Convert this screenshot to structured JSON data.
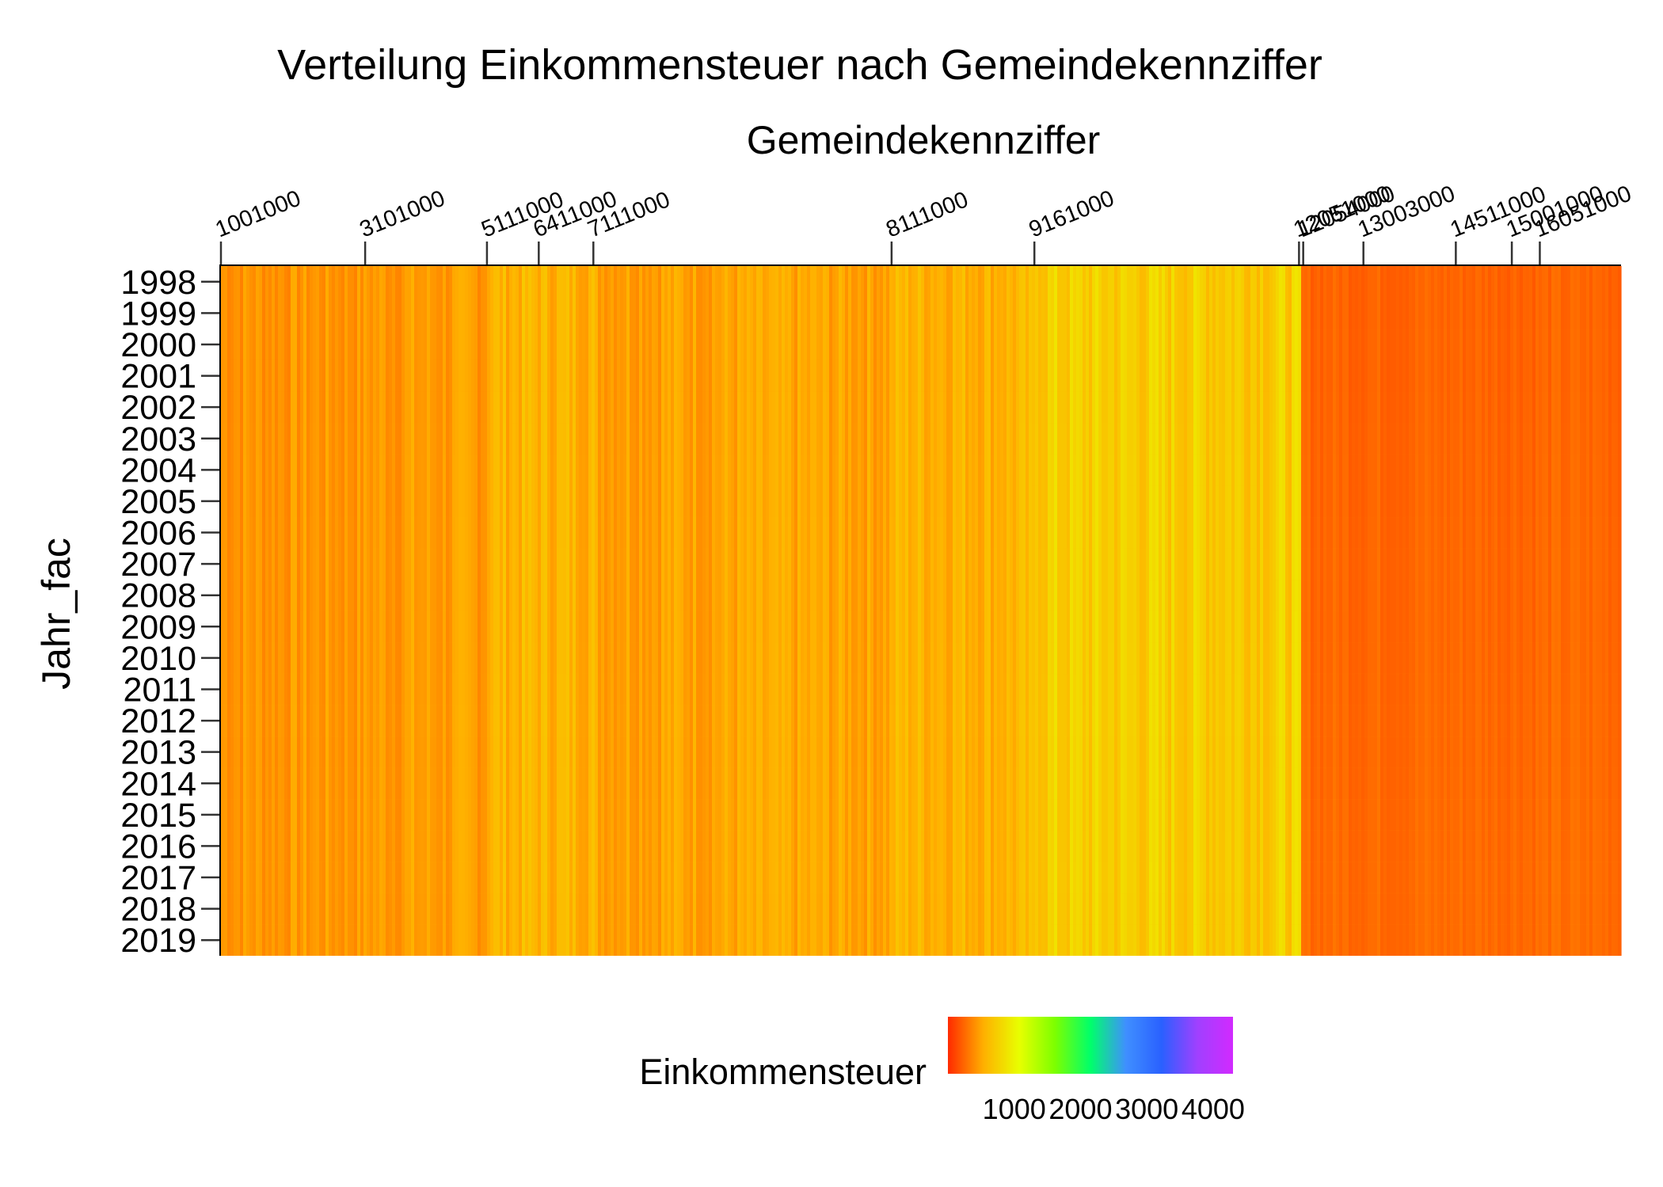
{
  "chart_data": {
    "type": "heatmap",
    "title": "Verteilung Einkommensteuer nach Gemeindekennziffer",
    "xlabel": "Gemeindekennziffer",
    "ylabel": "Jahr_fac",
    "x_axis_position": "top",
    "x_tick_labels": [
      "1001000",
      "3101000",
      "5111000",
      "6411000",
      "7111000",
      "8111000",
      "9161000",
      "12051000",
      "12054000",
      "13003000",
      "14511000",
      "15001000",
      "16051000"
    ],
    "x_tick_fraction": [
      0.0,
      0.103,
      0.19,
      0.227,
      0.266,
      0.479,
      0.581,
      0.77,
      0.773,
      0.816,
      0.882,
      0.922,
      0.942
    ],
    "x_section_values_approx": [
      {
        "from": "1001000",
        "to": "3101000",
        "value": 420
      },
      {
        "from": "3101000",
        "to": "5111000",
        "value": 440
      },
      {
        "from": "5111000",
        "to": "7111000",
        "value": 560
      },
      {
        "from": "7111000",
        "to": "8111000",
        "value": 480
      },
      {
        "from": "8111000",
        "to": "9161000",
        "value": 560
      },
      {
        "from": "9161000",
        "to": "12051000",
        "value": 720
      },
      {
        "from": "12051000",
        "to": "16051000",
        "value": 230
      }
    ],
    "y_categories": [
      "1998",
      "1999",
      "2000",
      "2001",
      "2002",
      "2003",
      "2004",
      "2005",
      "2006",
      "2007",
      "2008",
      "2009",
      "2010",
      "2011",
      "2012",
      "2013",
      "2014",
      "2015",
      "2016",
      "2017",
      "2018",
      "2019"
    ],
    "legend": {
      "title": "Einkommensteuer",
      "position": "bottom",
      "range": [
        0,
        4300
      ],
      "ticks": [
        1000,
        2000,
        3000,
        4000
      ],
      "colors": [
        "#ff2a00",
        "#ffb000",
        "#e8ff00",
        "#7dff00",
        "#00ff6a",
        "#3f8fff",
        "#2a60ff",
        "#a040ff",
        "#d22aff"
      ]
    },
    "grid": false
  }
}
